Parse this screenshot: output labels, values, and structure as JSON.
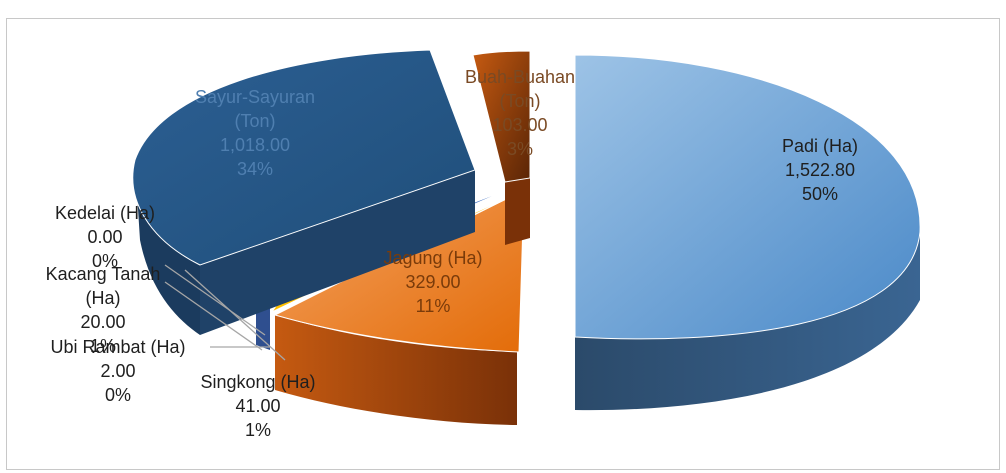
{
  "chart_data": {
    "type": "pie",
    "title": "",
    "is_3d": true,
    "exploded": true,
    "slices": [
      {
        "name": "Padi (Ha)",
        "value": 1522.8,
        "value_label": "1,522.80",
        "percent_label": "50%",
        "color": "#5b9bd5"
      },
      {
        "name": "Jagung (Ha)",
        "value": 329.0,
        "value_label": "329.00",
        "percent_label": "11%",
        "color": "#ed7d31"
      },
      {
        "name": "Singkong (Ha)",
        "value": 41.0,
        "value_label": "41.00",
        "percent_label": "1%",
        "color": "#ed7d31"
      },
      {
        "name": "Ubi Rambat (Ha)",
        "value": 2.0,
        "value_label": "2.00",
        "percent_label": "0%",
        "color": "#ffc000"
      },
      {
        "name": "Kacang Tanah (Ha)",
        "value": 20.0,
        "value_label": "20.00",
        "percent_label": "1%",
        "color": "#4472c4"
      },
      {
        "name": "Kedelai (Ha)",
        "value": 0.0,
        "value_label": "0.00",
        "percent_label": "0%",
        "color": "#a5a5a5"
      },
      {
        "name": "Sayur-Sayuran (Ton)",
        "value": 1018.0,
        "value_label": "1,018.00",
        "percent_label": "34%",
        "color": "#255e91"
      },
      {
        "name": "Buah-Buahan (Ton)",
        "value": 103.0,
        "value_label": "103.00",
        "percent_label": "3%",
        "color": "#843c0c"
      }
    ]
  }
}
